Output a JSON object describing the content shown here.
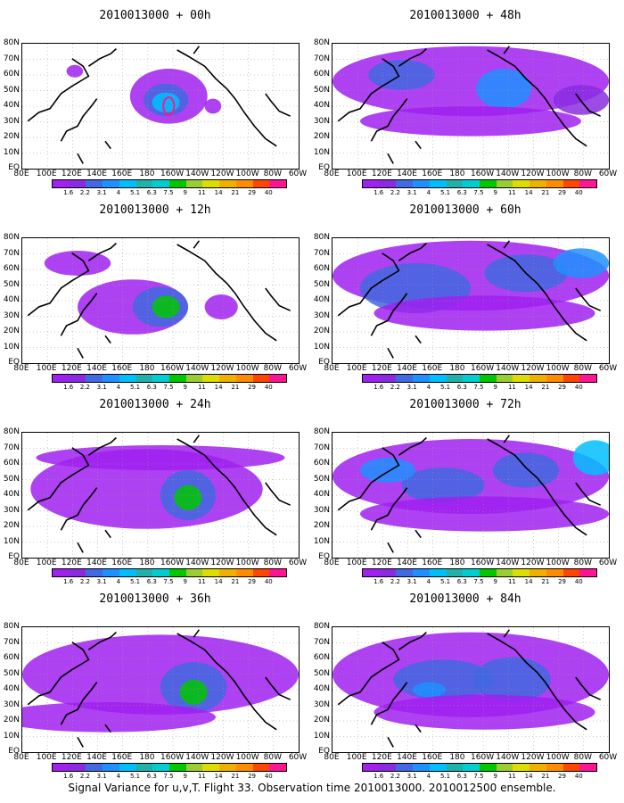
{
  "panels": [
    {
      "title": "2010013000 + 00h",
      "col": 0,
      "row": 0
    },
    {
      "title": "2010013000 + 48h",
      "col": 1,
      "row": 0
    },
    {
      "title": "2010013000 + 12h",
      "col": 0,
      "row": 1
    },
    {
      "title": "2010013000 + 60h",
      "col": 1,
      "row": 1
    },
    {
      "title": "2010013000 + 24h",
      "col": 0,
      "row": 2
    },
    {
      "title": "2010013000 + 72h",
      "col": 1,
      "row": 2
    },
    {
      "title": "2010013000 + 36h",
      "col": 0,
      "row": 3
    },
    {
      "title": "2010013000 + 84h",
      "col": 1,
      "row": 3
    }
  ],
  "y_labels": [
    "80N",
    "70N",
    "60N",
    "50N",
    "40N",
    "30N",
    "20N",
    "10N",
    "EQ"
  ],
  "x_labels": [
    "80E",
    "100E",
    "120E",
    "140E",
    "160E",
    "180",
    "160W",
    "140W",
    "120W",
    "100W",
    "80W",
    "60W"
  ],
  "colorbar": {
    "levels": [
      "1.6",
      "2.2",
      "3.1",
      "4",
      "5.1",
      "6.3",
      "7.5",
      "9",
      "11",
      "14",
      "21",
      "29",
      "40"
    ],
    "colors": [
      "#a020f0",
      "#8a2be2",
      "#4169e1",
      "#1e90ff",
      "#00bfff",
      "#20b2aa",
      "#00ced1",
      "#00c800",
      "#9acd32",
      "#dddd00",
      "#f0b000",
      "#ff8c00",
      "#ff4500",
      "#ff1493"
    ]
  },
  "footer": "Signal Variance for u,v,T. Flight 33. Observation time 2010013000. 2010012500 ensemble."
}
